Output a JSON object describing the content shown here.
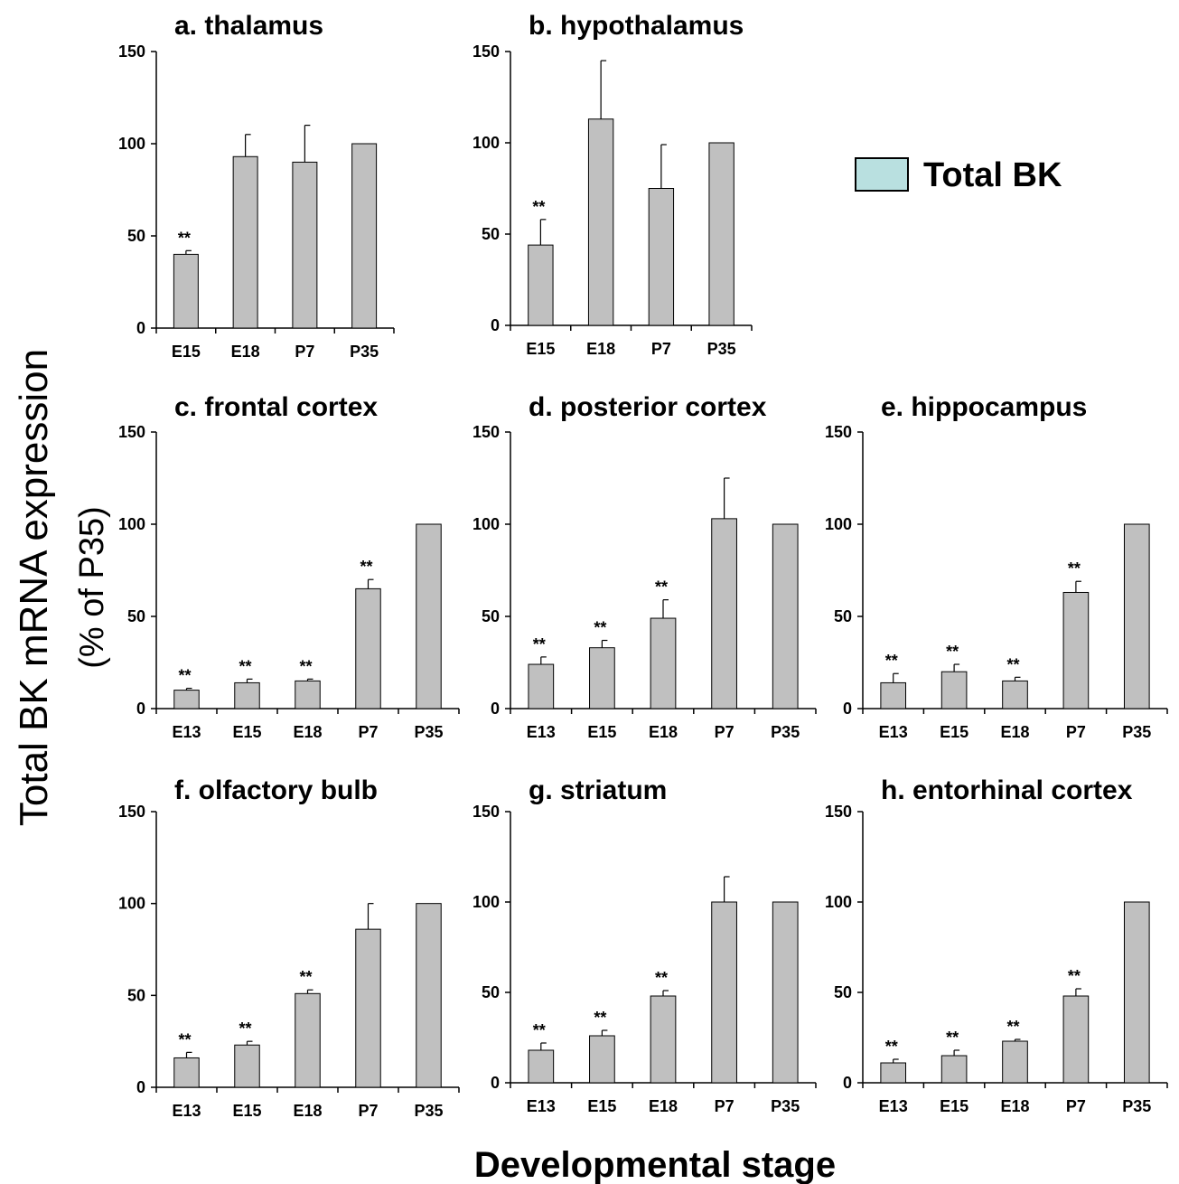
{
  "figure": {
    "y_title_line1": "Total BK mRNA expression",
    "y_title_line2": "(% of P35)",
    "x_title": "Developmental stage",
    "legend_label": "Total BK",
    "legend_color": "#b9e0e0",
    "bar_color": "#c0c0c0"
  },
  "chart_data": [
    {
      "type": "bar",
      "title": "a. thalamus",
      "categories": [
        "E15",
        "E18",
        "P7",
        "P35"
      ],
      "values": [
        40,
        93,
        90,
        100
      ],
      "errors": [
        2,
        12,
        20,
        0
      ],
      "significance": [
        "**",
        "",
        "",
        ""
      ],
      "ylim": [
        0,
        150
      ],
      "yticks": [
        0,
        50,
        100,
        150
      ]
    },
    {
      "type": "bar",
      "title": "b. hypothalamus",
      "categories": [
        "E15",
        "E18",
        "P7",
        "P35"
      ],
      "values": [
        44,
        113,
        75,
        100
      ],
      "errors": [
        14,
        32,
        24,
        0
      ],
      "significance": [
        "**",
        "",
        "",
        ""
      ],
      "ylim": [
        0,
        150
      ],
      "yticks": [
        0,
        50,
        100,
        150
      ]
    },
    {
      "type": "bar",
      "title": "c. frontal cortex",
      "categories": [
        "E13",
        "E15",
        "E18",
        "P7",
        "P35"
      ],
      "values": [
        10,
        14,
        15,
        65,
        100
      ],
      "errors": [
        1,
        2,
        1,
        5,
        0
      ],
      "significance": [
        "**",
        "**",
        "**",
        "**",
        ""
      ],
      "ylim": [
        0,
        150
      ],
      "yticks": [
        0,
        50,
        100,
        150
      ]
    },
    {
      "type": "bar",
      "title": "d. posterior cortex",
      "categories": [
        "E13",
        "E15",
        "E18",
        "P7",
        "P35"
      ],
      "values": [
        24,
        33,
        49,
        103,
        100
      ],
      "errors": [
        4,
        4,
        10,
        22,
        0
      ],
      "significance": [
        "**",
        "**",
        "**",
        "",
        ""
      ],
      "ylim": [
        0,
        150
      ],
      "yticks": [
        0,
        50,
        100,
        150
      ]
    },
    {
      "type": "bar",
      "title": "e. hippocampus",
      "categories": [
        "E13",
        "E15",
        "E18",
        "P7",
        "P35"
      ],
      "values": [
        14,
        20,
        15,
        63,
        100
      ],
      "errors": [
        5,
        4,
        2,
        6,
        0
      ],
      "significance": [
        "**",
        "**",
        "**",
        "**",
        ""
      ],
      "ylim": [
        0,
        150
      ],
      "yticks": [
        0,
        50,
        100,
        150
      ]
    },
    {
      "type": "bar",
      "title": "f. olfactory bulb",
      "categories": [
        "E13",
        "E15",
        "E18",
        "P7",
        "P35"
      ],
      "values": [
        16,
        23,
        51,
        86,
        100
      ],
      "errors": [
        3,
        2,
        2,
        14,
        0
      ],
      "significance": [
        "**",
        "**",
        "**",
        "",
        ""
      ],
      "ylim": [
        0,
        150
      ],
      "yticks": [
        0,
        50,
        100,
        150
      ]
    },
    {
      "type": "bar",
      "title": "g. striatum",
      "categories": [
        "E13",
        "E15",
        "E18",
        "P7",
        "P35"
      ],
      "values": [
        18,
        26,
        48,
        100,
        100
      ],
      "errors": [
        4,
        3,
        3,
        14,
        0
      ],
      "significance": [
        "**",
        "**",
        "**",
        "",
        ""
      ],
      "ylim": [
        0,
        150
      ],
      "yticks": [
        0,
        50,
        100,
        150
      ]
    },
    {
      "type": "bar",
      "title": "h. entorhinal cortex",
      "categories": [
        "E13",
        "E15",
        "E18",
        "P7",
        "P35"
      ],
      "values": [
        11,
        15,
        23,
        48,
        100
      ],
      "errors": [
        2,
        3,
        1,
        4,
        0
      ],
      "significance": [
        "**",
        "**",
        "**",
        "**",
        ""
      ],
      "ylim": [
        0,
        150
      ],
      "yticks": [
        0,
        50,
        100,
        150
      ]
    }
  ]
}
